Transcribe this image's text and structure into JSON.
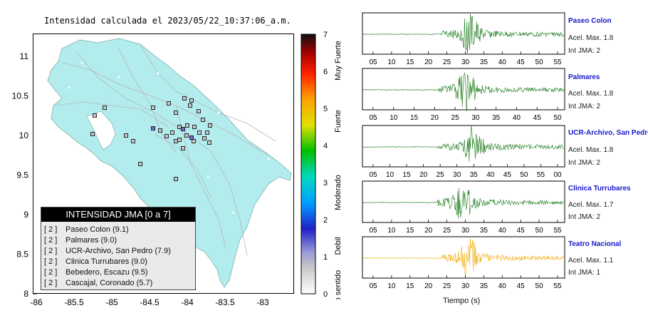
{
  "map": {
    "title": "Intensidad calculada el 2023/05/22_10:37:06_a.m.",
    "y_ticks": [
      "11",
      "10.5",
      "10",
      "9.5",
      "9",
      "8.5",
      "8"
    ],
    "x_ticks": [
      "-86",
      "-85.5",
      "-85",
      "-84.5",
      "-84",
      "-83.5",
      "-83"
    ],
    "land_color": "#b2ecec",
    "colorbar": {
      "ticks": [
        "7",
        "6",
        "5",
        "4",
        "3",
        "2",
        "1",
        "0"
      ],
      "labels": [
        "Muy Fuerte",
        "Fuerte",
        "Moderado",
        "Debil",
        "No sentido"
      ]
    }
  },
  "legend": {
    "title": "INTENSIDAD JMA [0 a 7]",
    "items": [
      {
        "level": "[ 2 ]",
        "name": "Paseo Colon (9.1)"
      },
      {
        "level": "[ 2 ]",
        "name": "Palmares (9.0)"
      },
      {
        "level": "[ 2 ]",
        "name": "UCR-Archivo, San Pedro (7.9)"
      },
      {
        "level": "[ 2 ]",
        "name": "Clinica Turrubares (9.0)"
      },
      {
        "level": "[ 2 ]",
        "name": "Bebedero, Escazu (9.5)"
      },
      {
        "level": "[ 2 ]",
        "name": "Cascajal, Coronado (5.7)"
      }
    ]
  },
  "waveforms": [
    {
      "station": "Paseo Colon",
      "acel": "Acel. Max. 1.8",
      "jma": "Int JMA: 2",
      "color": "#1a7a1a",
      "ticks": [
        "05",
        "10",
        "15",
        "20",
        "25",
        "30",
        "35",
        "40",
        "45",
        "50",
        "55"
      ]
    },
    {
      "station": "Palmares",
      "acel": "Acel. Max. 1.8",
      "jma": "Int JMA: 2",
      "color": "#1a7a1a",
      "ticks": [
        "05",
        "10",
        "15",
        "20",
        "25",
        "30",
        "35",
        "40",
        "45",
        "50"
      ]
    },
    {
      "station": "UCR-Archivo, San Pedro",
      "acel": "Acel. Max. 1.8",
      "jma": "Int JMA: 2",
      "color": "#1a7a1a",
      "ticks": [
        "05",
        "10",
        "15",
        "20",
        "25",
        "30",
        "35",
        "40",
        "45",
        "50",
        "55",
        "00"
      ]
    },
    {
      "station": "Clinica Turrubares",
      "acel": "Acel. Max. 1.7",
      "jma": "Int JMA: 2",
      "color": "#1a7a1a",
      "ticks": [
        "05",
        "10",
        "15",
        "20",
        "25",
        "30",
        "35",
        "40",
        "45",
        "50",
        "55"
      ]
    },
    {
      "station": "Teatro Nacional",
      "acel": "Acel. Max. 1.1",
      "jma": "Int JMA: 1",
      "color": "#f0a800",
      "ticks": [
        "05",
        "10",
        "15",
        "20",
        "25",
        "30",
        "35",
        "40",
        "45",
        "50",
        "55"
      ]
    }
  ],
  "time_axis_label": "Tiempo (s)"
}
